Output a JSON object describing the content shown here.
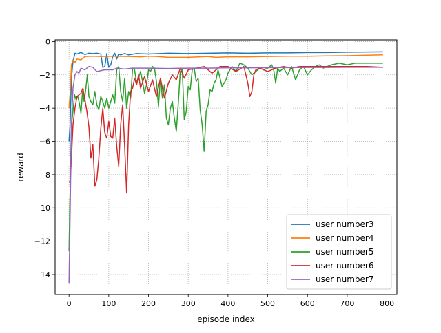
{
  "chart_data": {
    "type": "line",
    "title": "",
    "xlabel": "episode index",
    "ylabel": "reward",
    "xlim": [
      -35,
      825
    ],
    "ylim": [
      -15.2,
      0.1
    ],
    "xticks": [
      0,
      100,
      200,
      300,
      400,
      500,
      600,
      700,
      800
    ],
    "yticks": [
      0,
      -2,
      -4,
      -6,
      -8,
      -10,
      -12,
      -14
    ],
    "grid": true,
    "grid_style": "dotted",
    "legend_position": "lower-right",
    "series": [
      {
        "name": "user number3",
        "color": "#1f77b4",
        "x": [
          0,
          3,
          6,
          10,
          15,
          20,
          30,
          40,
          50,
          60,
          70,
          80,
          85,
          90,
          95,
          100,
          105,
          110,
          115,
          120,
          125,
          130,
          140,
          150,
          170,
          200,
          250,
          300,
          350,
          400,
          450,
          500,
          550,
          600,
          650,
          700,
          750,
          790
        ],
        "y": [
          -6.0,
          -4.8,
          -2.2,
          -1.2,
          -0.7,
          -0.75,
          -0.65,
          -0.78,
          -0.7,
          -0.72,
          -0.7,
          -0.75,
          -1.55,
          -1.5,
          -0.72,
          -1.55,
          -1.4,
          -0.9,
          -0.7,
          -1.05,
          -0.75,
          -0.8,
          -0.72,
          -0.8,
          -0.72,
          -0.75,
          -0.7,
          -0.72,
          -0.7,
          -0.68,
          -0.7,
          -0.68,
          -0.68,
          -0.66,
          -0.66,
          -0.64,
          -0.63,
          -0.62
        ]
      },
      {
        "name": "user number4",
        "color": "#ff7f0e",
        "x": [
          0,
          3,
          6,
          10,
          15,
          20,
          30,
          40,
          60,
          80,
          100,
          150,
          180,
          200,
          220,
          250,
          300,
          350,
          370,
          400,
          450,
          500,
          550,
          600,
          650,
          700,
          750,
          790
        ],
        "y": [
          -4.0,
          -3.0,
          -1.4,
          -1.1,
          -1.25,
          -1.05,
          -1.1,
          -0.9,
          -0.88,
          -0.9,
          -0.88,
          -0.9,
          -0.92,
          -0.88,
          -0.9,
          -0.95,
          -0.95,
          -0.9,
          -0.95,
          -0.92,
          -0.92,
          -0.9,
          -0.88,
          -0.88,
          -0.86,
          -0.85,
          -0.82,
          -0.8
        ]
      },
      {
        "name": "user number5",
        "color": "#2ca02c",
        "x": [
          0,
          3,
          6,
          10,
          14,
          18,
          22,
          26,
          30,
          34,
          38,
          42,
          46,
          50,
          55,
          60,
          65,
          70,
          75,
          80,
          85,
          90,
          95,
          100,
          105,
          110,
          115,
          120,
          125,
          130,
          135,
          140,
          145,
          150,
          155,
          160,
          165,
          170,
          175,
          180,
          185,
          190,
          195,
          200,
          205,
          210,
          215,
          220,
          225,
          230,
          235,
          240,
          245,
          250,
          255,
          260,
          265,
          270,
          275,
          280,
          285,
          290,
          295,
          300,
          305,
          310,
          315,
          320,
          325,
          330,
          335,
          340,
          345,
          350,
          355,
          360,
          365,
          370,
          375,
          380,
          385,
          390,
          395,
          400,
          410,
          420,
          430,
          440,
          450,
          460,
          470,
          480,
          490,
          500,
          510,
          515,
          520,
          525,
          530,
          540,
          550,
          560,
          570,
          580,
          590,
          600,
          610,
          620,
          630,
          640,
          660,
          680,
          700,
          720,
          740,
          760,
          790
        ],
        "y": [
          -12.6,
          -8.5,
          -5.0,
          -4.2,
          -3.2,
          -3.5,
          -3.3,
          -3.7,
          -4.3,
          -3.0,
          -3.6,
          -2.9,
          -2.0,
          -3.3,
          -3.6,
          -3.8,
          -3.0,
          -3.8,
          -4.1,
          -3.3,
          -3.6,
          -4.0,
          -3.4,
          -4.0,
          -3.6,
          -3.2,
          -3.7,
          -1.7,
          -1.5,
          -3.0,
          -3.6,
          -2.2,
          -4.0,
          -3.0,
          -3.4,
          -1.6,
          -1.7,
          -2.5,
          -2.2,
          -1.8,
          -2.4,
          -3.1,
          -2.6,
          -1.7,
          -1.8,
          -1.5,
          -1.6,
          -2.4,
          -3.9,
          -2.2,
          -3.4,
          -2.6,
          -4.6,
          -5.0,
          -4.0,
          -3.6,
          -4.6,
          -5.4,
          -3.7,
          -1.8,
          -1.7,
          -4.7,
          -4.2,
          -2.7,
          -2.9,
          -1.7,
          -1.6,
          -2.4,
          -2.2,
          -4.1,
          -5.0,
          -6.6,
          -4.2,
          -3.8,
          -2.9,
          -3.0,
          -2.5,
          -2.3,
          -1.7,
          -2.2,
          -2.7,
          -2.5,
          -2.3,
          -1.9,
          -1.5,
          -1.8,
          -1.3,
          -1.4,
          -1.6,
          -2.0,
          -1.8,
          -1.6,
          -1.7,
          -1.6,
          -1.4,
          -1.7,
          -2.5,
          -1.6,
          -1.8,
          -1.6,
          -2.0,
          -1.5,
          -2.3,
          -1.7,
          -1.5,
          -2.0,
          -1.7,
          -1.5,
          -1.4,
          -1.6,
          -1.4,
          -1.3,
          -1.4,
          -1.3,
          -1.3,
          -1.3,
          -1.3
        ]
      },
      {
        "name": "user number6",
        "color": "#d62728",
        "x": [
          0,
          3,
          6,
          10,
          15,
          20,
          25,
          30,
          35,
          40,
          45,
          50,
          55,
          60,
          65,
          70,
          75,
          80,
          85,
          90,
          95,
          100,
          105,
          110,
          115,
          120,
          125,
          130,
          135,
          140,
          145,
          150,
          155,
          160,
          165,
          170,
          175,
          180,
          190,
          200,
          210,
          220,
          230,
          240,
          250,
          260,
          270,
          280,
          290,
          300,
          320,
          340,
          360,
          380,
          400,
          420,
          440,
          450,
          455,
          460,
          465,
          470,
          480,
          500,
          520,
          540,
          560,
          580,
          600,
          620,
          650,
          700,
          750,
          790
        ],
        "y": [
          -8.4,
          -8.5,
          -7.0,
          -5.0,
          -4.0,
          -3.3,
          -3.2,
          -3.1,
          -2.8,
          -3.5,
          -4.2,
          -5.1,
          -7.0,
          -6.2,
          -8.7,
          -8.3,
          -7.0,
          -5.2,
          -4.0,
          -5.5,
          -5.8,
          -4.8,
          -5.7,
          -5.8,
          -4.6,
          -6.3,
          -7.5,
          -5.0,
          -3.8,
          -6.3,
          -9.1,
          -5.0,
          -3.0,
          -2.8,
          -2.2,
          -2.6,
          -2.0,
          -2.8,
          -2.1,
          -3.0,
          -2.3,
          -3.3,
          -2.2,
          -3.4,
          -2.5,
          -2.0,
          -2.3,
          -1.6,
          -2.2,
          -1.7,
          -1.6,
          -1.5,
          -1.9,
          -1.5,
          -1.5,
          -1.8,
          -1.5,
          -2.5,
          -3.3,
          -3.0,
          -2.0,
          -1.7,
          -1.6,
          -1.8,
          -1.6,
          -1.5,
          -1.6,
          -1.5,
          -1.5,
          -1.5,
          -1.5,
          -1.5,
          -1.5,
          -1.55
        ]
      },
      {
        "name": "user number7",
        "color": "#9467bd",
        "x": [
          0,
          3,
          6,
          10,
          15,
          20,
          25,
          30,
          40,
          50,
          60,
          70,
          80,
          90,
          100,
          110,
          120,
          140,
          160,
          200,
          250,
          300,
          350,
          400,
          450,
          500,
          550,
          600,
          650,
          700,
          750,
          790
        ],
        "y": [
          -14.5,
          -10.0,
          -5.0,
          -2.8,
          -2.0,
          -1.8,
          -1.9,
          -1.6,
          -1.7,
          -1.5,
          -1.55,
          -1.8,
          -1.75,
          -1.7,
          -1.7,
          -1.7,
          -1.6,
          -1.65,
          -1.6,
          -1.6,
          -1.62,
          -1.6,
          -1.6,
          -1.58,
          -1.58,
          -1.57,
          -1.57,
          -1.56,
          -1.56,
          -1.55,
          -1.55,
          -1.55
        ]
      }
    ]
  }
}
